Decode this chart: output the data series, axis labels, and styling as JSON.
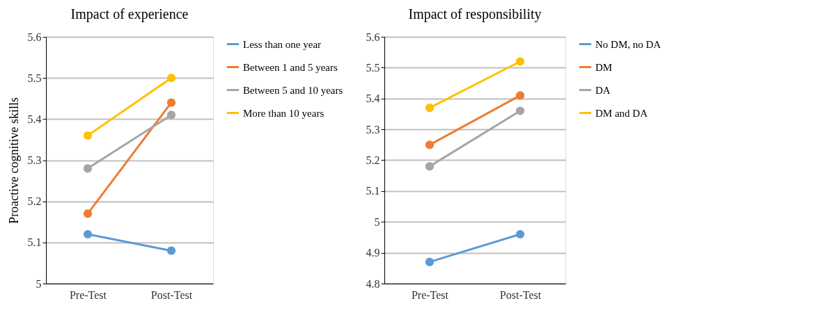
{
  "chart_data": [
    {
      "type": "line",
      "title": "Impact of experience",
      "ylabel": "Proactive cognitive skills",
      "categories": [
        "Pre-Test",
        "Post-Test"
      ],
      "series": [
        {
          "name": "Less than one year",
          "color": "#5b9bd5",
          "values": [
            5.12,
            5.08
          ]
        },
        {
          "name": "Between 1 and 5 years",
          "color": "#ed7d31",
          "values": [
            5.17,
            5.44
          ]
        },
        {
          "name": "Between 5 and 10 years",
          "color": "#a5a5a5",
          "values": [
            5.28,
            5.41
          ]
        },
        {
          "name": "More than 10 years",
          "color": "#ffc000",
          "values": [
            5.36,
            5.5
          ]
        }
      ],
      "ylim": [
        5,
        5.6
      ],
      "yticks": [
        5,
        5.1,
        5.2,
        5.3,
        5.4,
        5.5,
        5.6
      ],
      "grid": "y",
      "legend": "right",
      "marker": "circle",
      "line_style": "solid"
    },
    {
      "type": "line",
      "title": "Impact of responsibility",
      "categories": [
        "Pre-Test",
        "Post-Test"
      ],
      "series": [
        {
          "name": "No DM, no DA",
          "color": "#5b9bd5",
          "values": [
            4.87,
            4.96
          ]
        },
        {
          "name": "DM",
          "color": "#ed7d31",
          "values": [
            5.25,
            5.41
          ]
        },
        {
          "name": "DA",
          "color": "#a5a5a5",
          "values": [
            5.18,
            5.36
          ]
        },
        {
          "name": "DM and DA",
          "color": "#ffc000",
          "values": [
            5.37,
            5.52
          ]
        }
      ],
      "ylim": [
        4.8,
        5.6
      ],
      "yticks": [
        4.8,
        4.9,
        5,
        5.1,
        5.2,
        5.3,
        5.4,
        5.5,
        5.6
      ],
      "grid": "y",
      "legend": "right",
      "marker": "circle",
      "line_style": "solid"
    }
  ]
}
